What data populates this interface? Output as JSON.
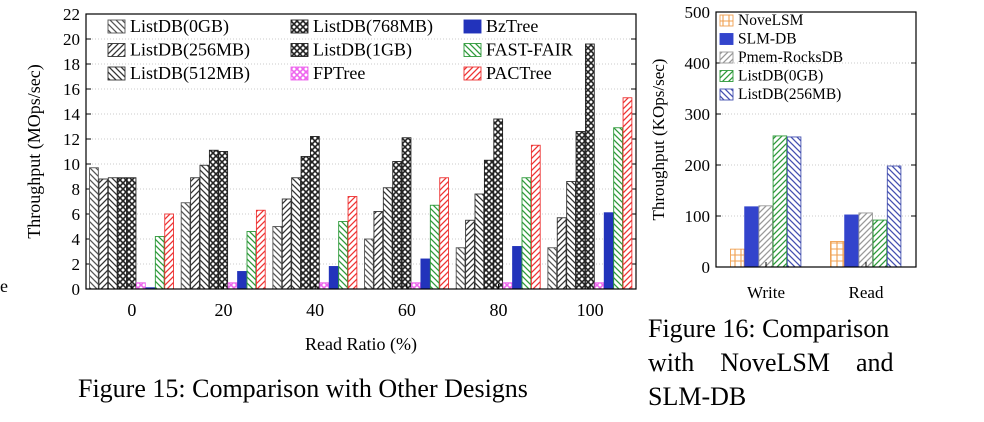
{
  "figures": [
    {
      "caption": "Figure 15: Comparison with Other Designs"
    },
    {
      "caption_lines": [
        "Figure 16: Comparison",
        "with    NoveLSM    and",
        "SLM-DB"
      ]
    }
  ],
  "stray_text": "e",
  "chart_data": [
    {
      "type": "bar",
      "xlabel": "Read Ratio (%)",
      "ylabel": "Throughput (MOps/sec)",
      "ylim": [
        0,
        22
      ],
      "yticks": [
        0,
        2,
        4,
        6,
        8,
        10,
        12,
        14,
        16,
        18,
        20,
        22
      ],
      "categories": [
        "0",
        "20",
        "40",
        "60",
        "80",
        "100"
      ],
      "grid": true,
      "legend": "top",
      "series": [
        {
          "name": "ListDB(0GB)",
          "color": "#555555",
          "pattern": "bs",
          "values": [
            9.7,
            6.9,
            5.0,
            4.0,
            3.3,
            3.3
          ]
        },
        {
          "name": "ListDB(256MB)",
          "color": "#333333",
          "pattern": "fs",
          "values": [
            8.8,
            8.9,
            7.2,
            6.2,
            5.5,
            5.7
          ]
        },
        {
          "name": "ListDB(512MB)",
          "color": "#333333",
          "pattern": "bs",
          "values": [
            8.9,
            9.9,
            8.9,
            8.1,
            7.6,
            8.6
          ]
        },
        {
          "name": "ListDB(768MB)",
          "color": "#222222",
          "pattern": "x",
          "values": [
            8.9,
            11.1,
            10.6,
            10.2,
            10.3,
            12.6
          ]
        },
        {
          "name": "ListDB(1GB)",
          "color": "#222222",
          "pattern": "x",
          "values": [
            8.9,
            11.0,
            12.2,
            12.1,
            13.6,
            19.6
          ]
        },
        {
          "name": "FPTree",
          "color": "#ee66ee",
          "pattern": "x",
          "values": [
            0.5,
            0.5,
            0.5,
            0.5,
            0.5,
            0.5
          ]
        },
        {
          "name": "BzTree",
          "color": "#2233bb",
          "pattern": "solid",
          "values": [
            0.1,
            1.4,
            1.8,
            2.4,
            3.4,
            6.1
          ]
        },
        {
          "name": "FAST-FAIR",
          "color": "#2e9a3a",
          "pattern": "bs",
          "values": [
            4.2,
            4.6,
            5.4,
            6.7,
            8.9,
            12.9
          ]
        },
        {
          "name": "PACTree",
          "color": "#ee3333",
          "pattern": "fs",
          "values": [
            6.0,
            6.3,
            7.4,
            8.9,
            11.5,
            15.3
          ]
        }
      ]
    },
    {
      "type": "bar",
      "xlabel": "",
      "ylabel": "Throughput (KOps/sec)",
      "ylim": [
        0,
        500
      ],
      "yticks": [
        0,
        100,
        200,
        300,
        400,
        500
      ],
      "categories": [
        "Write",
        "Read"
      ],
      "grid": true,
      "legend": "top-left",
      "series": [
        {
          "name": "NoveLSM",
          "color": "#f0a050",
          "pattern": "grid",
          "values": [
            35,
            50
          ]
        },
        {
          "name": "SLM-DB",
          "color": "#3344cc",
          "pattern": "solid",
          "values": [
            118,
            102
          ]
        },
        {
          "name": "Pmem-RocksDB",
          "color": "#999999",
          "pattern": "fs",
          "values": [
            120,
            106
          ]
        },
        {
          "name": "ListDB(0GB)",
          "color": "#2e9a3a",
          "pattern": "fs",
          "values": [
            257,
            92
          ]
        },
        {
          "name": "ListDB(256MB)",
          "color": "#4450b0",
          "pattern": "bs",
          "values": [
            255,
            198
          ]
        }
      ]
    }
  ]
}
